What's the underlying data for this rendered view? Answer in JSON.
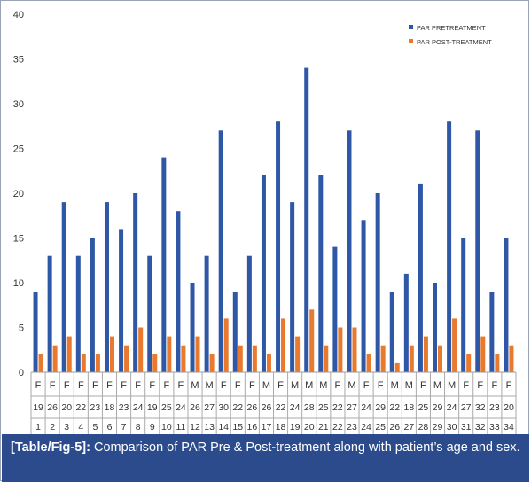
{
  "chart_data": {
    "type": "bar",
    "categories": [
      "1",
      "2",
      "3",
      "4",
      "5",
      "6",
      "7",
      "8",
      "9",
      "10",
      "11",
      "12",
      "13",
      "14",
      "15",
      "16",
      "17",
      "18",
      "19",
      "20",
      "21",
      "22",
      "23",
      "24",
      "25",
      "26",
      "27",
      "28",
      "29",
      "30",
      "31",
      "32",
      "33",
      "34"
    ],
    "sex": [
      "F",
      "F",
      "F",
      "F",
      "F",
      "F",
      "F",
      "F",
      "F",
      "F",
      "F",
      "M",
      "M",
      "F",
      "F",
      "F",
      "M",
      "F",
      "M",
      "M",
      "M",
      "F",
      "M",
      "F",
      "F",
      "M",
      "M",
      "F",
      "M",
      "M",
      "F",
      "F",
      "F",
      "F"
    ],
    "age": [
      "19",
      "26",
      "20",
      "22",
      "23",
      "18",
      "23",
      "24",
      "19",
      "25",
      "24",
      "26",
      "27",
      "30",
      "22",
      "26",
      "26",
      "22",
      "24",
      "28",
      "25",
      "22",
      "27",
      "24",
      "29",
      "22",
      "18",
      "25",
      "29",
      "24",
      "27",
      "32",
      "23",
      "20"
    ],
    "series": [
      {
        "name": "PAR PRETREATMENT",
        "color": "#2e58a6",
        "values": [
          9,
          13,
          19,
          13,
          15,
          19,
          16,
          20,
          13,
          24,
          18,
          10,
          13,
          27,
          9,
          13,
          22,
          28,
          19,
          34,
          22,
          14,
          27,
          17,
          20,
          9,
          11,
          21,
          10,
          28,
          15,
          27,
          9,
          15
        ]
      },
      {
        "name": "PAR POST-TREATMENT",
        "color": "#e8792f",
        "values": [
          2,
          3,
          4,
          2,
          2,
          4,
          3,
          5,
          2,
          4,
          3,
          4,
          2,
          6,
          3,
          3,
          2,
          6,
          4,
          7,
          3,
          5,
          5,
          2,
          3,
          1,
          3,
          4,
          3,
          6,
          2,
          4,
          2,
          3
        ]
      }
    ],
    "ylim": [
      0,
      40
    ],
    "yticks": [
      0,
      5,
      10,
      15,
      20,
      25,
      30,
      35,
      40
    ],
    "grid": false,
    "legend": "top-right"
  },
  "caption": {
    "tag": "[Table/Fig-5]:",
    "text": " Comparison of PAR Pre & Post-treatment along with patient’s age and sex."
  },
  "colors": {
    "caption_bg": "#2b4b8c",
    "pre": "#2e58a6",
    "post": "#e8792f"
  }
}
